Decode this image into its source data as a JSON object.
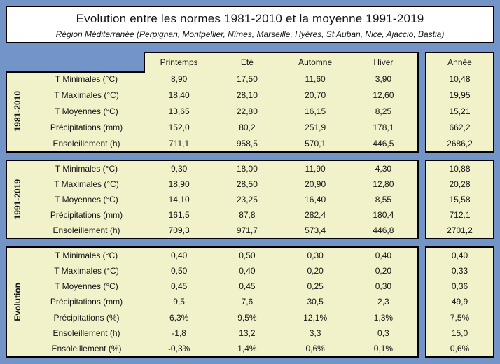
{
  "title": {
    "main": "Evolution entre les normes 1981-2010 et la moyenne 1991-2019",
    "subtitle": "Région Méditerranée (Perpignan, Montpellier, Nîmes, Marseille, Hyères, St Auban, Nice, Ajaccio, Bastia)"
  },
  "colors": {
    "page_background": "#7394c6",
    "cell_background": "#f1f1ca",
    "title_background": "#ffffff",
    "border": "#000000",
    "text": "#141414"
  },
  "table": {
    "season_headers": [
      "Printemps",
      "Eté",
      "Automne",
      "Hiver"
    ],
    "year_header": "Année",
    "sections": [
      {
        "label": "1981-2010",
        "rows": [
          {
            "label": "T Minimales (°C)",
            "values": [
              "8,90",
              "17,50",
              "11,60",
              "3,90"
            ],
            "year": "10,48"
          },
          {
            "label": "T Maximales (°C)",
            "values": [
              "18,40",
              "28,10",
              "20,70",
              "12,60"
            ],
            "year": "19,95"
          },
          {
            "label": "T Moyennes (°C)",
            "values": [
              "13,65",
              "22,80",
              "16,15",
              "8,25"
            ],
            "year": "15,21"
          },
          {
            "label": "Précipitations (mm)",
            "values": [
              "152,0",
              "80,2",
              "251,9",
              "178,1"
            ],
            "year": "662,2"
          },
          {
            "label": "Ensoleillement (h)",
            "values": [
              "711,1",
              "958,5",
              "570,1",
              "446,5"
            ],
            "year": "2686,2"
          }
        ]
      },
      {
        "label": "1991-2019",
        "rows": [
          {
            "label": "T Minimales (°C)",
            "values": [
              "9,30",
              "18,00",
              "11,90",
              "4,30"
            ],
            "year": "10,88"
          },
          {
            "label": "T Maximales (°C)",
            "values": [
              "18,90",
              "28,50",
              "20,90",
              "12,80"
            ],
            "year": "20,28"
          },
          {
            "label": "T Moyennes (°C)",
            "values": [
              "14,10",
              "23,25",
              "16,40",
              "8,55"
            ],
            "year": "15,58"
          },
          {
            "label": "Précipitations (mm)",
            "values": [
              "161,5",
              "87,8",
              "282,4",
              "180,4"
            ],
            "year": "712,1"
          },
          {
            "label": "Ensoleillement (h)",
            "values": [
              "709,3",
              "971,7",
              "573,4",
              "446,8"
            ],
            "year": "2701,2"
          }
        ]
      },
      {
        "label": "Evolution",
        "rows": [
          {
            "label": "T Minimales (°C)",
            "values": [
              "0,40",
              "0,50",
              "0,30",
              "0,40"
            ],
            "year": "0,40"
          },
          {
            "label": "T Maximales (°C)",
            "values": [
              "0,50",
              "0,40",
              "0,20",
              "0,20"
            ],
            "year": "0,33"
          },
          {
            "label": "T Moyennes (°C)",
            "values": [
              "0,45",
              "0,45",
              "0,25",
              "0,30"
            ],
            "year": "0,36"
          },
          {
            "label": "Précipitations (mm)",
            "values": [
              "9,5",
              "7,6",
              "30,5",
              "2,3"
            ],
            "year": "49,9"
          },
          {
            "label": "Précipitations (%)",
            "values": [
              "6,3%",
              "9,5%",
              "12,1%",
              "1,3%"
            ],
            "year": "7,5%"
          },
          {
            "label": "Ensoleillement (h)",
            "values": [
              "-1,8",
              "13,2",
              "3,3",
              "0,3"
            ],
            "year": "15,0"
          },
          {
            "label": "Ensoleillement (%)",
            "values": [
              "-0,3%",
              "1,4%",
              "0,6%",
              "0,1%"
            ],
            "year": "0,6%"
          }
        ]
      }
    ]
  },
  "chart_data": {
    "type": "table",
    "title": "Evolution entre les normes 1981-2010 et la moyenne 1991-2019",
    "subtitle": "Région Méditerranée (Perpignan, Montpellier, Nîmes, Marseille, Hyères, St Auban, Nice, Ajaccio, Bastia)",
    "columns": [
      "Printemps",
      "Eté",
      "Automne",
      "Hiver",
      "Année"
    ],
    "sections": [
      {
        "name": "1981-2010",
        "rows": [
          {
            "label": "T Minimales (°C)",
            "values": [
              8.9,
              17.5,
              11.6,
              3.9,
              10.48
            ]
          },
          {
            "label": "T Maximales (°C)",
            "values": [
              18.4,
              28.1,
              20.7,
              12.6,
              19.95
            ]
          },
          {
            "label": "T Moyennes (°C)",
            "values": [
              13.65,
              22.8,
              16.15,
              8.25,
              15.21
            ]
          },
          {
            "label": "Précipitations (mm)",
            "values": [
              152.0,
              80.2,
              251.9,
              178.1,
              662.2
            ]
          },
          {
            "label": "Ensoleillement (h)",
            "values": [
              711.1,
              958.5,
              570.1,
              446.5,
              2686.2
            ]
          }
        ]
      },
      {
        "name": "1991-2019",
        "rows": [
          {
            "label": "T Minimales (°C)",
            "values": [
              9.3,
              18.0,
              11.9,
              4.3,
              10.88
            ]
          },
          {
            "label": "T Maximales (°C)",
            "values": [
              18.9,
              28.5,
              20.9,
              12.8,
              20.28
            ]
          },
          {
            "label": "T Moyennes (°C)",
            "values": [
              14.1,
              23.25,
              16.4,
              8.55,
              15.58
            ]
          },
          {
            "label": "Précipitations (mm)",
            "values": [
              161.5,
              87.8,
              282.4,
              180.4,
              712.1
            ]
          },
          {
            "label": "Ensoleillement (h)",
            "values": [
              709.3,
              971.7,
              573.4,
              446.8,
              2701.2
            ]
          }
        ]
      },
      {
        "name": "Evolution",
        "rows": [
          {
            "label": "T Minimales (°C)",
            "values": [
              0.4,
              0.5,
              0.3,
              0.4,
              0.4
            ]
          },
          {
            "label": "T Maximales (°C)",
            "values": [
              0.5,
              0.4,
              0.2,
              0.2,
              0.33
            ]
          },
          {
            "label": "T Moyennes (°C)",
            "values": [
              0.45,
              0.45,
              0.25,
              0.3,
              0.36
            ]
          },
          {
            "label": "Précipitations (mm)",
            "values": [
              9.5,
              7.6,
              30.5,
              2.3,
              49.9
            ]
          },
          {
            "label": "Précipitations (%)",
            "values": [
              6.3,
              9.5,
              12.1,
              1.3,
              7.5
            ]
          },
          {
            "label": "Ensoleillement (h)",
            "values": [
              -1.8,
              13.2,
              3.3,
              0.3,
              15.0
            ]
          },
          {
            "label": "Ensoleillement (%)",
            "values": [
              -0.3,
              1.4,
              0.6,
              0.1,
              0.6
            ]
          }
        ]
      }
    ]
  }
}
